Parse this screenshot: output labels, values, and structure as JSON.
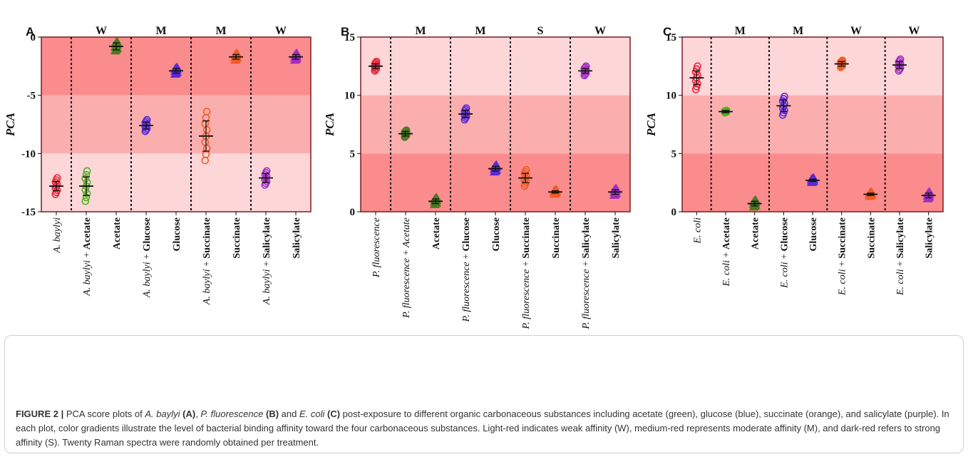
{
  "colors": {
    "weak": "#fdd6d8",
    "moderate": "#fbaeae",
    "strong": "#fa8c8d",
    "frame": "#7a1b22",
    "divider": "#111111",
    "green": "#4fb020",
    "green_dark": "#4a7a1f",
    "blue": "#5b2bd4",
    "orange": "#f05a24",
    "purple": "#a02ec0",
    "red": "#e8253a",
    "caption_text": "#333333"
  },
  "caption": {
    "label": "FIGURE 2 |",
    "t1": " PCA score plots of ",
    "sp1": "A. baylyi",
    "pa": "(A)",
    "t2": ", ",
    "sp2": "P. fluorescence",
    "pb": "(B)",
    "t3": " and ",
    "sp3": "E. coli",
    "pc": "(C)",
    "t4": " post-exposure to different organic carbonaceous substances including acetate (green), glucose (blue), succinate (orange), and salicylate (purple). In each plot, color gradients illustrate the level of bacterial binding affinity toward the four carbonaceous substances. Light-red indicates weak affinity (W), medium-red represents moderate affinity (M), and dark-red refers to strong affinity (S). Twenty Raman spectra were randomly obtained per treatment."
  },
  "chart_data": [
    {
      "panel": "A",
      "type": "scatter",
      "ylabel": "PCA",
      "ylim": [
        -15,
        0
      ],
      "yticks": [
        0,
        -5,
        -10,
        -15
      ],
      "bands": [
        {
          "from": 0,
          "to": -5,
          "level": "strong"
        },
        {
          "from": -5,
          "to": -10,
          "level": "moderate"
        },
        {
          "from": -10,
          "to": -15,
          "level": "weak"
        }
      ],
      "affinity": [
        "W",
        "M",
        "M",
        "W"
      ],
      "categories": [
        {
          "species": "A. baylyi",
          "substance": "",
          "color": "red",
          "marker": "circle",
          "mean": -12.8,
          "spread": 0.7,
          "sd": 0.4
        },
        {
          "species": "A. baylyi",
          "substance": "Acetate",
          "color": "green",
          "marker": "circle",
          "mean": -12.8,
          "spread": 1.3,
          "sd": 0.8
        },
        {
          "species": "",
          "substance": "Acetate",
          "color": "green_dark",
          "marker": "triangle",
          "mean": -0.8,
          "spread": 0.4,
          "sd": 0.3
        },
        {
          "species": "A. baylyi",
          "substance": "Glucose",
          "color": "blue",
          "marker": "circle",
          "mean": -7.6,
          "spread": 0.5,
          "sd": 0.3
        },
        {
          "species": "",
          "substance": "Glucose",
          "color": "blue",
          "marker": "triangle",
          "mean": -2.9,
          "spread": 0.3,
          "sd": 0.2
        },
        {
          "species": "A. baylyi",
          "substance": "Succinate",
          "color": "orange",
          "marker": "circle",
          "mean": -8.5,
          "spread": 2.1,
          "sd": 1.3
        },
        {
          "species": "",
          "substance": "Succinate",
          "color": "orange",
          "marker": "triangle",
          "mean": -1.7,
          "spread": 0.3,
          "sd": 0.2
        },
        {
          "species": "A. baylyi",
          "substance": "Salicylate",
          "color": "purple",
          "marker": "circle",
          "mean": -12.1,
          "spread": 0.6,
          "sd": 0.4
        },
        {
          "species": "",
          "substance": "Salicylate",
          "color": "purple",
          "marker": "triangle",
          "mean": -1.7,
          "spread": 0.3,
          "sd": 0.2
        }
      ]
    },
    {
      "panel": "B",
      "type": "scatter",
      "ylabel": "PCA",
      "ylim": [
        0,
        15
      ],
      "yticks": [
        15,
        10,
        5,
        0
      ],
      "bands": [
        {
          "from": 15,
          "to": 10,
          "level": "weak"
        },
        {
          "from": 10,
          "to": 5,
          "level": "moderate"
        },
        {
          "from": 5,
          "to": 0,
          "level": "strong"
        }
      ],
      "affinity": [
        "M",
        "M",
        "S",
        "W"
      ],
      "categories": [
        {
          "species": "P. fluorescence",
          "substance": "",
          "color": "red",
          "marker": "circle",
          "mean": 12.5,
          "spread": 0.4,
          "sd": 0.2
        },
        {
          "species": "P. fluorescence",
          "substance": "Acetate",
          "substance_italic": true,
          "color": "green_dark",
          "marker": "circle",
          "mean": 6.7,
          "spread": 0.3,
          "sd": 0.2
        },
        {
          "species": "",
          "substance": "Acetate",
          "color": "green_dark",
          "marker": "triangle",
          "mean": 0.9,
          "spread": 0.3,
          "sd": 0.2
        },
        {
          "species": "P. fluorescence",
          "substance": "Glucose",
          "color": "blue",
          "marker": "circle",
          "mean": 8.4,
          "spread": 0.5,
          "sd": 0.3
        },
        {
          "species": "",
          "substance": "Glucose",
          "color": "blue",
          "marker": "triangle",
          "mean": 3.7,
          "spread": 0.3,
          "sd": 0.2
        },
        {
          "species": "P. fluorescence",
          "substance": "Succinate",
          "color": "orange",
          "marker": "circle",
          "mean": 2.9,
          "spread": 0.7,
          "sd": 0.4
        },
        {
          "species": "",
          "substance": "Succinate",
          "color": "orange",
          "marker": "triangle",
          "mean": 1.7,
          "spread": 0.2,
          "sd": 0.1
        },
        {
          "species": "P. fluorescence",
          "substance": "Salicylate",
          "color": "purple",
          "marker": "circle",
          "mean": 12.1,
          "spread": 0.4,
          "sd": 0.2
        },
        {
          "species": "",
          "substance": "Salicylate",
          "color": "purple",
          "marker": "triangle",
          "mean": 1.7,
          "spread": 0.3,
          "sd": 0.2
        }
      ]
    },
    {
      "panel": "C",
      "type": "scatter",
      "ylabel": "PCA",
      "ylim": [
        0,
        15
      ],
      "yticks": [
        15,
        10,
        5,
        0
      ],
      "bands": [
        {
          "from": 15,
          "to": 10,
          "level": "weak"
        },
        {
          "from": 10,
          "to": 5,
          "level": "moderate"
        },
        {
          "from": 5,
          "to": 0,
          "level": "strong"
        }
      ],
      "affinity": [
        "M",
        "M",
        "W",
        "W"
      ],
      "categories": [
        {
          "species": "E. coli",
          "substance": "",
          "color": "red",
          "marker": "circle",
          "mean": 11.5,
          "spread": 1.0,
          "sd": 0.6
        },
        {
          "species": "E. coli",
          "substance": "Acetate",
          "color": "green",
          "marker": "circle",
          "mean": 8.6,
          "spread": 0.1,
          "sd": 0.1
        },
        {
          "species": "",
          "substance": "Acetate",
          "color": "green_dark",
          "marker": "triangle",
          "mean": 0.7,
          "spread": 0.3,
          "sd": 0.2
        },
        {
          "species": "E. coli",
          "substance": "Glucose",
          "color": "blue",
          "marker": "circle",
          "mean": 9.1,
          "spread": 0.8,
          "sd": 0.5
        },
        {
          "species": "",
          "substance": "Glucose",
          "color": "blue",
          "marker": "triangle",
          "mean": 2.7,
          "spread": 0.2,
          "sd": 0.1
        },
        {
          "species": "E. coli",
          "substance": "Succinate",
          "color": "orange",
          "marker": "circle",
          "mean": 12.7,
          "spread": 0.3,
          "sd": 0.2
        },
        {
          "species": "",
          "substance": "Succinate",
          "color": "orange",
          "marker": "triangle",
          "mean": 1.5,
          "spread": 0.2,
          "sd": 0.1
        },
        {
          "species": "E. coli",
          "substance": "Salicylate",
          "color": "purple",
          "marker": "circle",
          "mean": 12.6,
          "spread": 0.5,
          "sd": 0.3
        },
        {
          "species": "",
          "substance": "Salicylate",
          "color": "purple",
          "marker": "triangle",
          "mean": 1.4,
          "spread": 0.3,
          "sd": 0.2
        }
      ]
    }
  ]
}
